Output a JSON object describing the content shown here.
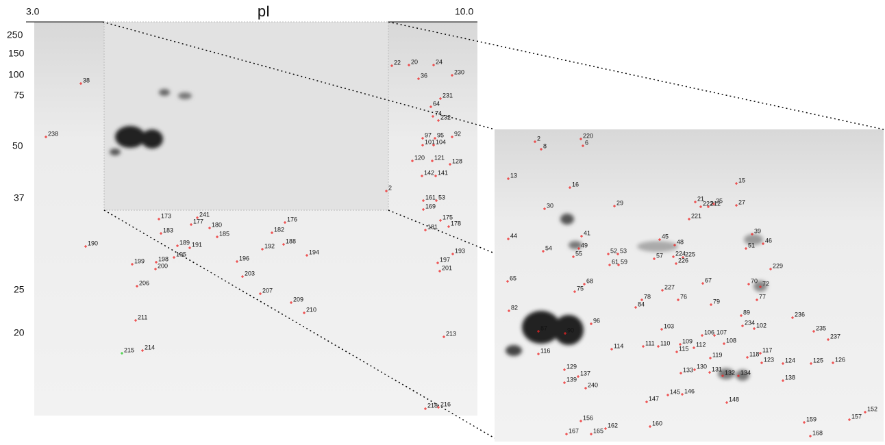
{
  "axis": {
    "title": "pI",
    "left": "3.0",
    "right": "10.0"
  },
  "mw_markers": [
    "250",
    "150",
    "100",
    "75",
    "50",
    "37",
    "25",
    "20"
  ],
  "left_spots": [
    "22",
    "20",
    "24",
    "36",
    "230",
    "38",
    "231",
    "64",
    "74",
    "232",
    "238",
    "97",
    "95",
    "92",
    "101",
    "104",
    "120",
    "121",
    "128",
    "142",
    "141",
    "2",
    "161",
    "53",
    "169",
    "173",
    "241",
    "176",
    "177",
    "180",
    "175",
    "178",
    "182",
    "183",
    "185",
    "181",
    "190",
    "189",
    "191",
    "192",
    "188",
    "195",
    "194",
    "193",
    "196",
    "198",
    "199",
    "200",
    "197",
    "201",
    "203",
    "206",
    "207",
    "209",
    "210",
    "211",
    "213",
    "215",
    "214",
    "216",
    "218"
  ],
  "right_spots": [
    "2",
    "220",
    "8",
    "6",
    "13",
    "16",
    "15",
    "21",
    "222",
    "212",
    "25",
    "27",
    "30",
    "29",
    "221",
    "41",
    "39",
    "44",
    "45",
    "48",
    "46",
    "54",
    "49",
    "51",
    "52",
    "53",
    "55",
    "57",
    "224",
    "225",
    "226",
    "61",
    "59",
    "229",
    "65",
    "68",
    "67",
    "70",
    "72",
    "75",
    "227",
    "78",
    "76",
    "77",
    "84",
    "79",
    "89",
    "82",
    "96",
    "236",
    "234",
    "102",
    "87",
    "90",
    "103",
    "106",
    "107",
    "235",
    "237",
    "108",
    "109",
    "114",
    "111",
    "110",
    "112",
    "115",
    "116",
    "117",
    "119",
    "118",
    "123",
    "124",
    "125",
    "126",
    "129",
    "130",
    "133",
    "131",
    "132",
    "134",
    "137",
    "139",
    "138",
    "240",
    "145",
    "146",
    "148",
    "147",
    "152",
    "157",
    "159",
    "156",
    "160",
    "162",
    "167",
    "165",
    "168"
  ]
}
